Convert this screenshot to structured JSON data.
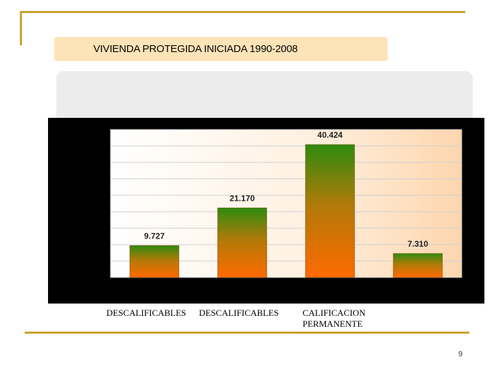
{
  "slide": {
    "title": "VIVIENDA PROTEGIDA INICIADA 1990-2008",
    "page_number": "9"
  },
  "colors": {
    "frame": "#c8a12a",
    "title_bg": "#fde4b8",
    "bar_top": "#2e8b10",
    "bar_bottom": "#ff6a00"
  },
  "chart_data": {
    "type": "bar",
    "title": "",
    "xlabel": "",
    "ylabel": "",
    "values": [
      9727,
      21170,
      40424,
      7310
    ],
    "data_labels": [
      "9.727",
      "21.170",
      "40.424",
      "7.310"
    ],
    "category_labels": [
      "DESCALIFICABLES",
      "DESCALIFICABLES",
      "CALIFICACION PERMANENTE",
      ""
    ],
    "ylim": [
      0,
      45000
    ],
    "grid": true,
    "legend": "none"
  }
}
